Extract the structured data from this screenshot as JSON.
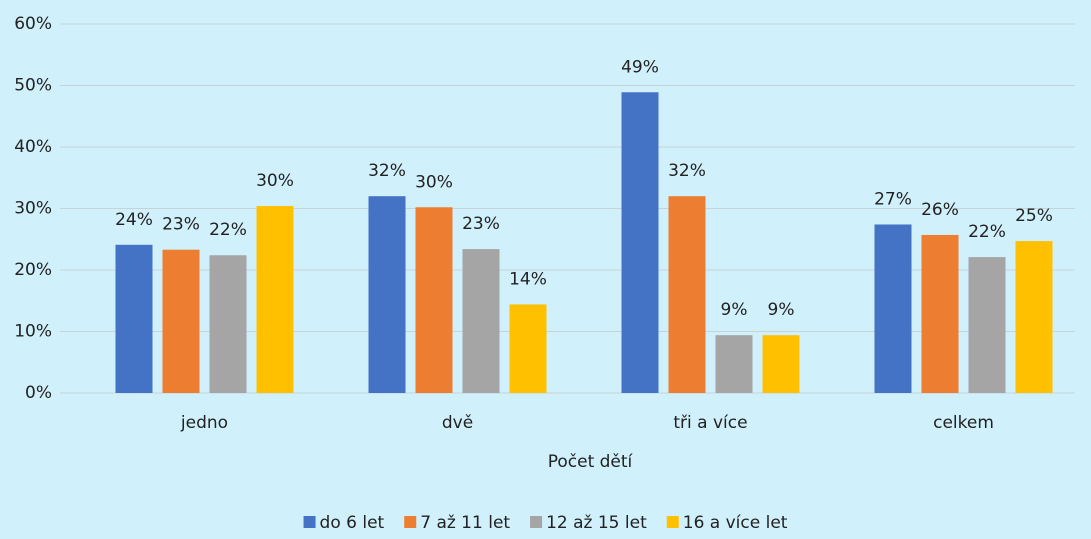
{
  "chart_data": {
    "type": "bar",
    "x_label": "Počet dětí",
    "categories": [
      "jedno",
      "dvě",
      "tři a více",
      "celkem"
    ],
    "series": [
      {
        "name": "do 6 let",
        "color": "#4472c4",
        "values": [
          24.1,
          32.0,
          48.9,
          27.4
        ],
        "value_labels": [
          "24%",
          "32%",
          "49%",
          "27%"
        ]
      },
      {
        "name": "7 až 11 let",
        "color": "#ed7d31",
        "values": [
          23.3,
          30.2,
          32.0,
          25.7
        ],
        "value_labels": [
          "23%",
          "30%",
          "32%",
          "26%"
        ]
      },
      {
        "name": "12 až 15 let",
        "color": "#a5a5a5",
        "values": [
          22.4,
          23.4,
          9.4,
          22.1
        ],
        "value_labels": [
          "22%",
          "23%",
          "9%",
          "22%"
        ]
      },
      {
        "name": "16 a více let",
        "color": "#ffc000",
        "values": [
          30.4,
          14.4,
          9.4,
          24.7
        ],
        "value_labels": [
          "30%",
          "14%",
          "9%",
          "25%"
        ]
      }
    ],
    "ylim": [
      0,
      60
    ],
    "yticks": [
      {
        "value": 0,
        "label": "0%"
      },
      {
        "value": 10,
        "label": "10%"
      },
      {
        "value": 20,
        "label": "20%"
      },
      {
        "value": 30,
        "label": "30%"
      },
      {
        "value": 40,
        "label": "40%"
      },
      {
        "value": 50,
        "label": "50%"
      },
      {
        "value": 60,
        "label": "60%"
      }
    ],
    "grid": true,
    "legend": "bottom"
  }
}
